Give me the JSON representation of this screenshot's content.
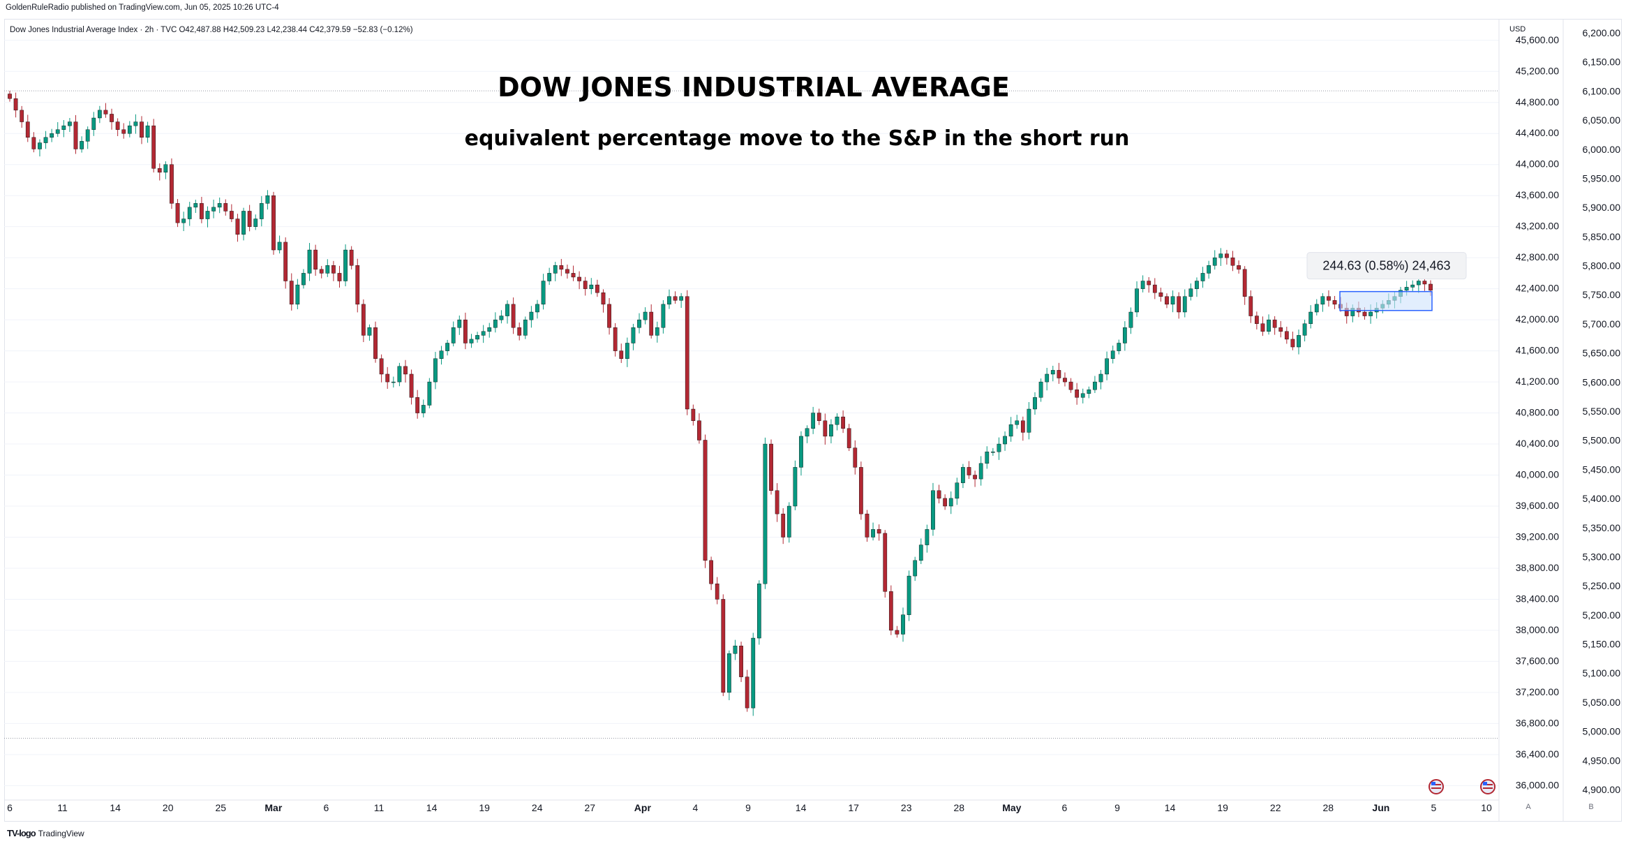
{
  "header": {
    "publisher_line": "GoldenRuleRadio published on TradingView.com, Jun 05, 2025 10:26 UTC-4",
    "legend_line": "Dow Jones Industrial Average Index · 2h · TVC  O42,487.88  H42,509.23  L42,238.44  C42,379.59  −52.83 (−0.12%)"
  },
  "footer": {
    "brand": "TradingView",
    "logo": "TV-logo"
  },
  "buttons": {
    "auto": "A",
    "log": "B"
  },
  "colors": {
    "up": "#089981",
    "down": "#b22833",
    "measure_fill": "#cfe3fb",
    "measure_border": "#2962ff",
    "grid": "#f0f3fa"
  },
  "flag_icons": [
    "us-flag-icon",
    "us-flag-icon"
  ],
  "chart_data": {
    "type": "candlestick",
    "title": "DOW JONES INDUSTRIAL AVERAGE",
    "subtitle": "equivalent percentage move to the S&P in the short run",
    "currency": "USD",
    "left_axis_ticks": [
      "45,600.00",
      "45,200.00",
      "44,800.00",
      "44,400.00",
      "44,000.00",
      "43,600.00",
      "43,200.00",
      "42,800.00",
      "42,400.00",
      "42,000.00",
      "41,600.00",
      "41,200.00",
      "40,800.00",
      "40,400.00",
      "40,000.00",
      "39,600.00",
      "39,200.00",
      "38,800.00",
      "38,400.00",
      "38,000.00",
      "37,600.00",
      "37,200.00",
      "36,800.00",
      "36,400.00",
      "36,000.00"
    ],
    "right_axis_ticks": [
      "6,200.00",
      "6,150.00",
      "6,100.00",
      "6,050.00",
      "6,000.00",
      "5,950.00",
      "5,900.00",
      "5,850.00",
      "5,800.00",
      "5,750.00",
      "5,700.00",
      "5,650.00",
      "5,600.00",
      "5,550.00",
      "5,500.00",
      "5,450.00",
      "5,400.00",
      "5,350.00",
      "5,300.00",
      "5,250.00",
      "5,200.00",
      "5,150.00",
      "5,100.00",
      "5,050.00",
      "5,000.00",
      "4,950.00",
      "4,900.00"
    ],
    "x_ticks": [
      "6",
      "11",
      "14",
      "20",
      "25",
      "Mar",
      "6",
      "11",
      "14",
      "19",
      "24",
      "27",
      "Apr",
      "4",
      "9",
      "14",
      "17",
      "23",
      "28",
      "May",
      "6",
      "9",
      "14",
      "19",
      "22",
      "28",
      "Jun",
      "5",
      "10"
    ],
    "y_range": [
      35850,
      45850
    ],
    "reference_lines": [
      44950,
      36610
    ],
    "measure_box": {
      "from": 42120,
      "to": 42364,
      "label": "244.63 (0.58%) 24,463"
    },
    "closes": [
      44850,
      44700,
      44550,
      44350,
      44200,
      44280,
      44350,
      44400,
      44450,
      44500,
      44550,
      44200,
      44300,
      44450,
      44600,
      44700,
      44650,
      44550,
      44450,
      44400,
      44500,
      44550,
      44350,
      44500,
      43950,
      43900,
      44000,
      43500,
      43250,
      43300,
      43450,
      43500,
      43300,
      43400,
      43450,
      43500,
      43400,
      43300,
      43100,
      43400,
      43200,
      43300,
      43500,
      43600,
      42900,
      43000,
      42500,
      42200,
      42450,
      42600,
      42900,
      42650,
      42600,
      42700,
      42600,
      42500,
      42900,
      42700,
      42200,
      41800,
      41900,
      41500,
      41300,
      41200,
      41200,
      41400,
      41300,
      41000,
      40800,
      40900,
      41200,
      41500,
      41600,
      41700,
      41900,
      42000,
      41700,
      41750,
      41800,
      41850,
      41900,
      42000,
      42050,
      42200,
      41900,
      41800,
      42000,
      42100,
      42200,
      42500,
      42600,
      42700,
      42650,
      42600,
      42550,
      42500,
      42400,
      42450,
      42350,
      42200,
      41900,
      41600,
      41500,
      41700,
      41900,
      42000,
      42100,
      41800,
      41900,
      42200,
      42300,
      42250,
      42300,
      40850,
      40700,
      40450,
      38900,
      38600,
      38400,
      37200,
      37700,
      37800,
      37400,
      37000,
      37900,
      38600,
      40400,
      39800,
      39500,
      39200,
      39600,
      40100,
      40500,
      40600,
      40800,
      40700,
      40500,
      40650,
      40750,
      40600,
      40350,
      40100,
      39500,
      39200,
      39300,
      39250,
      38500,
      38000,
      37950,
      38200,
      38700,
      38900,
      39100,
      39300,
      39800,
      39700,
      39600,
      39700,
      39900,
      40100,
      40000,
      39950,
      40150,
      40300,
      40300,
      40400,
      40500,
      40650,
      40700,
      40550,
      40850,
      41000,
      41200,
      41300,
      41350,
      41250,
      41200,
      41100,
      41000,
      41050,
      41100,
      41200,
      41300,
      41500,
      41600,
      41700,
      41900,
      42100,
      42400,
      42500,
      42450,
      42350,
      42300,
      42200,
      42300,
      42100,
      42300,
      42400,
      42500,
      42600,
      42700,
      42800,
      42850,
      42800,
      42700,
      42650,
      42300,
      42050,
      41950,
      41850,
      42000,
      41900,
      41850,
      41750,
      41650,
      41800,
      41950,
      42100,
      42200,
      42300,
      42250,
      42200,
      42150,
      42050,
      42150,
      42100,
      42050,
      42100,
      42150,
      42200,
      42250,
      42300,
      42380,
      42420,
      42450,
      42500,
      42460,
      42380
    ]
  }
}
